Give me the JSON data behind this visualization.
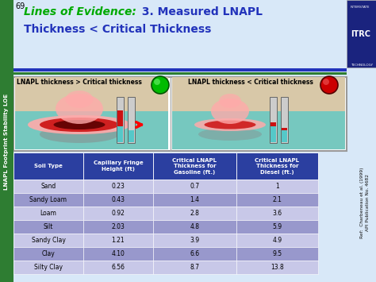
{
  "title_loe": "Lines of Evidence:",
  "title_rest_line1": " 3. Measured LNAPL",
  "title_rest_line2": "Thickness < Critical Thickness",
  "slide_number": "69",
  "left_label": "LNAPL thickness > Critical thickness",
  "right_label": "LNAPL thickness < Critical thickness",
  "left_sidebar_text": "LNAPL Footprint Stability LOE",
  "ref_text": "Ref:  Charbeneau et al. (1999)\nAPI Publication No. 4682",
  "col_headers": [
    "Soil Type",
    "Capillary Fringe\nHeight (ft)",
    "Critical LNAPL\nThickness for\nGasoline (ft.)",
    "Critical LNAPL\nThickness for\nDiesel (ft.)"
  ],
  "rows": [
    [
      "Sand",
      "0.23",
      "0.7",
      "1"
    ],
    [
      "Sandy Loam",
      "0.43",
      "1.4",
      "2.1"
    ],
    [
      "Loam",
      "0.92",
      "2.8",
      "3.6"
    ],
    [
      "Silt",
      "2.03",
      "4.8",
      "5.9"
    ],
    [
      "Sandy Clay",
      "1.21",
      "3.9",
      "4.9"
    ],
    [
      "Clay",
      "4.10",
      "6.6",
      "9.5"
    ],
    [
      "Silty Clay",
      "6.56",
      "8.7",
      "13.8"
    ]
  ],
  "header_bg": "#2b3fa0",
  "row_bg_light": "#c8c8e8",
  "row_bg_medium": "#9898cc",
  "title_area_bg": "#d8e8f8",
  "diagram_area_bg": "#e8e8e8",
  "green_circle_color": "#00bb00",
  "red_circle_color": "#cc0000",
  "sidebar_bg": "#2e7d32",
  "header_text_color": "#ffffff",
  "row_text_color": "#000000",
  "title_color_loe": "#00aa00",
  "title_color_rest": "#2233bb",
  "bar1_color": "#2233bb",
  "bar2_color": "#2e7d32",
  "water_color": "#55c8c8",
  "sand_color": "#d8c8a8",
  "lnapl_pink": "#ffaaaa",
  "lnapl_red": "#cc1111",
  "lnapl_dark": "#550000",
  "lnapl_gray": "#888888",
  "well_color": "#cccccc",
  "logo_bg": "#1a237e"
}
